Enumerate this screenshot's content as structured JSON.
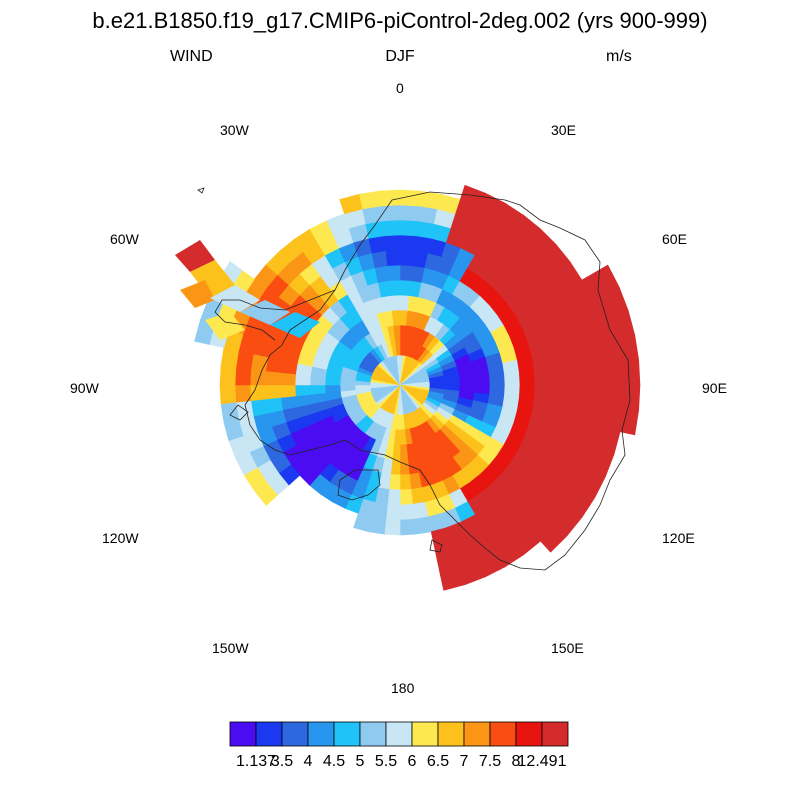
{
  "title": "b.e21.B1850.f19_g17.CMIP6-piControl-2deg.002 (yrs 900-999)",
  "subtitle": {
    "left": "WIND",
    "center": "DJF",
    "right": "m/s"
  },
  "lon_labels": {
    "l0": "0",
    "l30e": "30E",
    "l60e": "60E",
    "l90e": "90E",
    "l120e": "120E",
    "l150e": "150E",
    "l180": "180",
    "l150w": "150W",
    "l120w": "120W",
    "l90w": "90W",
    "l60w": "60W",
    "l30w": "30W"
  },
  "colorbar": {
    "colors": [
      "#4b0cf2",
      "#1a39f0",
      "#2d68e0",
      "#2895ef",
      "#1fc3f7",
      "#8fcbf0",
      "#c9e6f5",
      "#fde94f",
      "#fcc11b",
      "#fb9516",
      "#fa4d12",
      "#e8140f",
      "#d42c2c"
    ],
    "labels": [
      "1.137",
      "3.5",
      "4",
      "4.5",
      "5",
      "5.5",
      "6",
      "6.5",
      "7",
      "7.5",
      "8",
      "12.491"
    ]
  },
  "map": {
    "projection": "south polar stereographic",
    "field": "WIND",
    "season": "DJF",
    "units": "m/s"
  }
}
